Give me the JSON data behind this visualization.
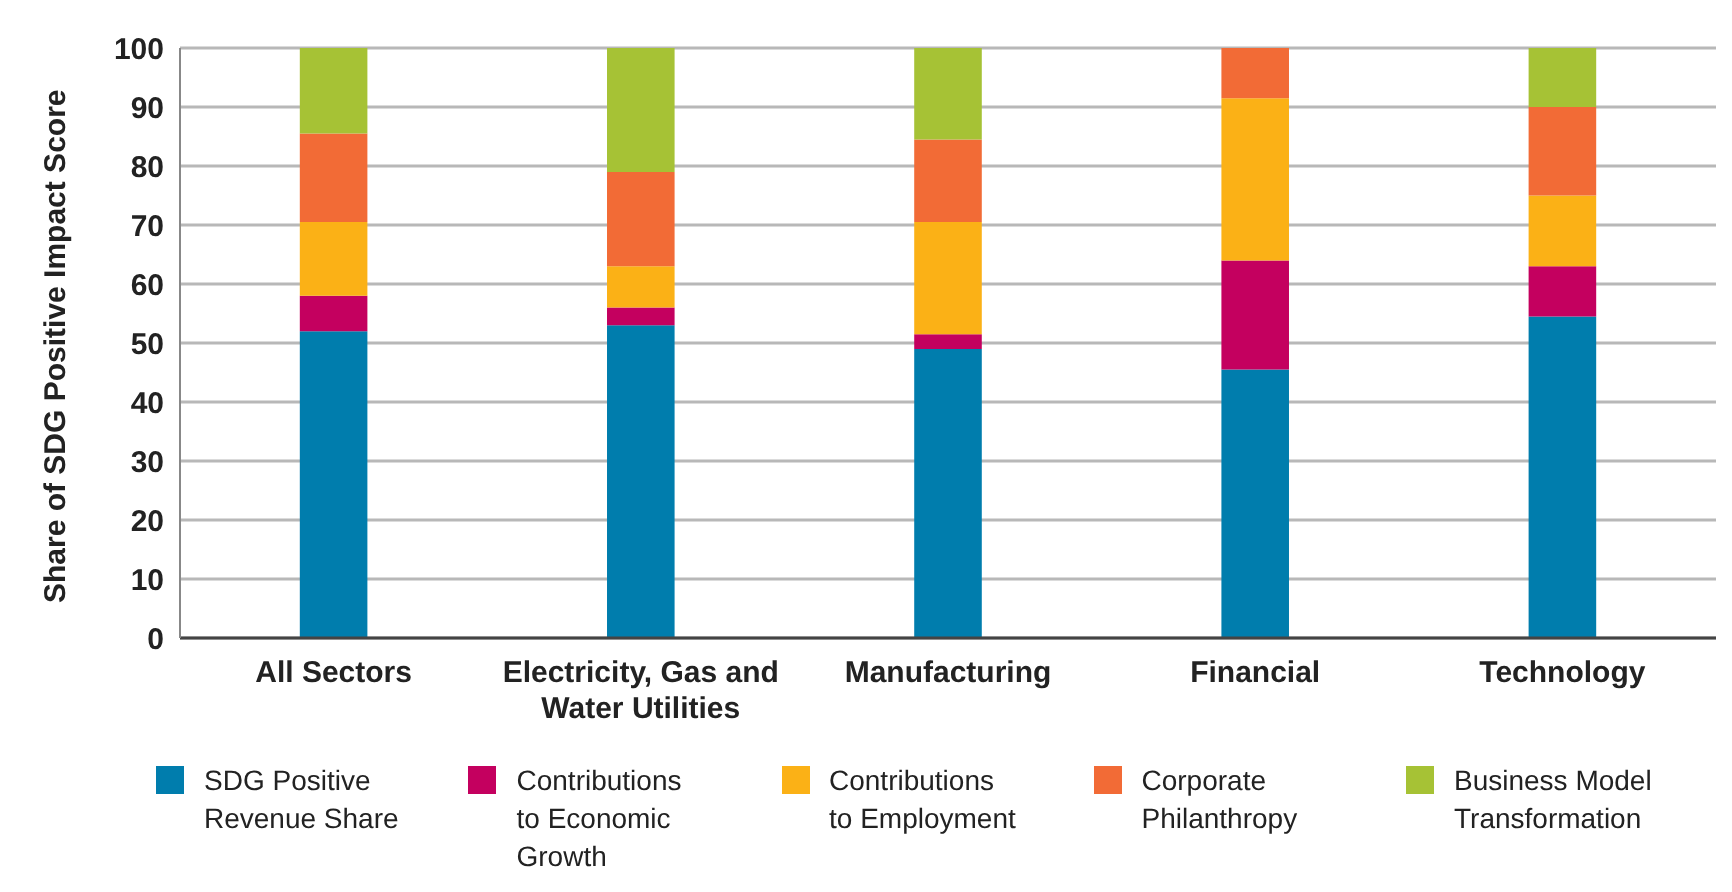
{
  "chart_data": {
    "type": "bar",
    "stacked": true,
    "ylabel": "Share of SDG Positive Impact Score",
    "categories": [
      "All Sectors",
      "Electricity, Gas and Water Utilities",
      "Manufacturing",
      "Financial",
      "Technology"
    ],
    "series": [
      {
        "name": "SDG Positive Revenue Share",
        "color": "#007dad",
        "values": [
          52,
          53,
          49,
          45.5,
          54.5
        ]
      },
      {
        "name": "Contributions to Economic Growth",
        "color": "#c4005f",
        "values": [
          6,
          3,
          2.5,
          18.5,
          8.5
        ]
      },
      {
        "name": "Contributions to Employment",
        "color": "#fbb116",
        "values": [
          12.5,
          7,
          19,
          27.5,
          12
        ]
      },
      {
        "name": "Corporate Philanthropy",
        "color": "#f26b36",
        "values": [
          15,
          16,
          14,
          8.5,
          15
        ]
      },
      {
        "name": "Business Model Transformation",
        "color": "#a6c235",
        "values": [
          14.5,
          21,
          15.5,
          0,
          10
        ]
      }
    ],
    "ylim": [
      0,
      100
    ],
    "yticks": [
      0,
      10,
      20,
      30,
      40,
      50,
      60,
      70,
      80,
      90,
      100
    ],
    "grid": "y",
    "legend": "bottom"
  }
}
